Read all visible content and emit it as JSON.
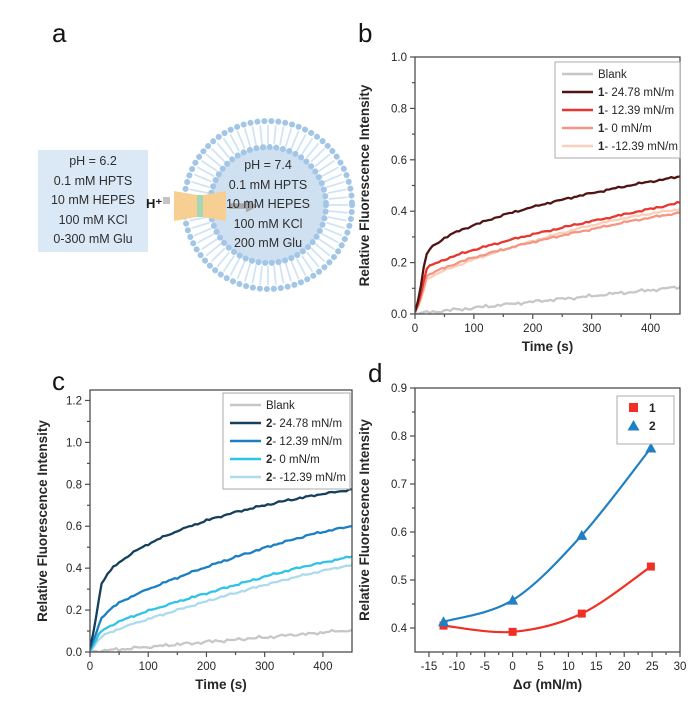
{
  "panel_labels": {
    "a": "a",
    "b": "b",
    "c": "c",
    "d": "d"
  },
  "panel_a": {
    "external_solution_lines": [
      "pH = 6.2",
      "0.1 mM HPTS",
      "10 mM HEPES",
      "100 mM KCl",
      "0-300 mM Glu"
    ],
    "internal_solution_lines": [
      "pH = 7.4",
      "0.1 mM HPTS",
      "10 mM HEPES",
      "100 mM KCl",
      "200 mM Glu"
    ],
    "proton_label": "H⁺",
    "colors": {
      "box_bg": "#dbe9f6",
      "vesicle_inner": "#cfe0f1",
      "beads": "#a3c6e6",
      "tails": "#cfe3f4",
      "channel": "#f8cf92",
      "channel_stripe": "#a5d7b4",
      "arrow": "#a8a8a8",
      "proton_square": "#c4c4c4"
    }
  },
  "chart_data": [
    {
      "panel": "b",
      "type": "line",
      "xlabel": "Time (s)",
      "ylabel": "Relative Fluorescence Intensity",
      "xlim": [
        0,
        450
      ],
      "ylim": [
        0,
        1.0
      ],
      "xticks": [
        0,
        100,
        200,
        300,
        400
      ],
      "xtick_labels": [
        "0",
        "100",
        "200",
        "300",
        "400"
      ],
      "yticks": [
        0,
        0.2,
        0.4,
        0.6,
        0.8,
        1.0
      ],
      "ytick_labels": [
        "0.0",
        "0.2",
        "0.4",
        "0.6",
        "0.8",
        "1.0"
      ],
      "x_minor_step": 50,
      "y_minor_step": 0.1,
      "grid": false,
      "legend_position": "top-right",
      "legend": [
        {
          "bold": "",
          "label": "Blank",
          "color": "#c7c7c7"
        },
        {
          "bold": "1",
          "label": "- 24.78 mN/m",
          "color": "#511414"
        },
        {
          "bold": "1",
          "label": "- 12.39 mN/m",
          "color": "#e8372e"
        },
        {
          "bold": "1",
          "label": "- 0 mN/m",
          "color": "#f59682"
        },
        {
          "bold": "1",
          "label": "- -12.39 mN/m",
          "color": "#f9cfba"
        }
      ],
      "x": [
        0,
        5,
        10,
        15,
        20,
        30,
        40,
        50,
        75,
        100,
        125,
        150,
        175,
        200,
        225,
        250,
        275,
        300,
        325,
        350,
        375,
        400,
        425,
        450
      ],
      "series": [
        {
          "name": "Blank",
          "color": "#c7c7c7",
          "noise": 1.3,
          "values": [
            0.002,
            0.003,
            0.004,
            0.005,
            0.006,
            0.008,
            0.01,
            0.013,
            0.018,
            0.024,
            0.03,
            0.036,
            0.042,
            0.048,
            0.053,
            0.059,
            0.064,
            0.07,
            0.076,
            0.082,
            0.087,
            0.093,
            0.099,
            0.105
          ]
        },
        {
          "name": "1- -12.39 mN/m",
          "color": "#f9cfba",
          "noise": 0.8,
          "values": [
            0.005,
            0.025,
            0.055,
            0.095,
            0.135,
            0.149,
            0.159,
            0.169,
            0.191,
            0.213,
            0.231,
            0.249,
            0.267,
            0.284,
            0.3,
            0.316,
            0.331,
            0.345,
            0.358,
            0.37,
            0.381,
            0.391,
            0.4,
            0.408
          ]
        },
        {
          "name": "1- 0 mN/m",
          "color": "#f59682",
          "noise": 0.8,
          "values": [
            0.008,
            0.03,
            0.065,
            0.11,
            0.148,
            0.16,
            0.17,
            0.18,
            0.201,
            0.22,
            0.236,
            0.251,
            0.266,
            0.28,
            0.293,
            0.306,
            0.318,
            0.33,
            0.342,
            0.354,
            0.365,
            0.375,
            0.385,
            0.394
          ]
        },
        {
          "name": "1- 12.39 mN/m",
          "color": "#e8372e",
          "noise": 0.8,
          "values": [
            0.01,
            0.04,
            0.08,
            0.13,
            0.178,
            0.192,
            0.202,
            0.212,
            0.232,
            0.25,
            0.266,
            0.281,
            0.296,
            0.31,
            0.323,
            0.336,
            0.349,
            0.361,
            0.373,
            0.385,
            0.397,
            0.409,
            0.421,
            0.433
          ]
        },
        {
          "name": "1- 24.78 mN/m",
          "color": "#511414",
          "noise": 0.8,
          "values": [
            0.01,
            0.05,
            0.11,
            0.18,
            0.235,
            0.265,
            0.28,
            0.295,
            0.325,
            0.345,
            0.366,
            0.385,
            0.401,
            0.416,
            0.431,
            0.445,
            0.458,
            0.47,
            0.482,
            0.494,
            0.505,
            0.515,
            0.525,
            0.535
          ]
        }
      ]
    },
    {
      "panel": "c",
      "type": "line",
      "xlabel": "Time (s)",
      "ylabel": "Relative Fluorescence Intensity",
      "xlim": [
        0,
        450
      ],
      "ylim": [
        0,
        1.25
      ],
      "xticks": [
        0,
        100,
        200,
        300,
        400
      ],
      "xtick_labels": [
        "0",
        "100",
        "200",
        "300",
        "400"
      ],
      "yticks": [
        0,
        0.2,
        0.4,
        0.6,
        0.8,
        1.0,
        1.2
      ],
      "ytick_labels": [
        "0.0",
        "0.2",
        "0.4",
        "0.6",
        "0.8",
        "1.0",
        "1.2"
      ],
      "x_minor_step": 50,
      "y_minor_step": 0.1,
      "grid": false,
      "legend_position": "top-right",
      "legend": [
        {
          "bold": "",
          "label": "Blank",
          "color": "#c7c7c7"
        },
        {
          "bold": "2",
          "label": "- 24.78 mN/m",
          "color": "#15405d"
        },
        {
          "bold": "2",
          "label": "- 12.39 mN/m",
          "color": "#1b7fc4"
        },
        {
          "bold": "2",
          "label": "- 0 mN/m",
          "color": "#2fc3e6"
        },
        {
          "bold": "2",
          "label": "- -12.39 mN/m",
          "color": "#abdbec"
        }
      ],
      "x": [
        0,
        5,
        10,
        15,
        20,
        30,
        40,
        50,
        75,
        100,
        125,
        150,
        175,
        200,
        225,
        250,
        275,
        300,
        325,
        350,
        375,
        400,
        425,
        450
      ],
      "series": [
        {
          "name": "Blank",
          "color": "#c7c7c7",
          "noise": 1.3,
          "values": [
            0.002,
            0.003,
            0.004,
            0.005,
            0.006,
            0.008,
            0.01,
            0.013,
            0.018,
            0.024,
            0.03,
            0.036,
            0.042,
            0.048,
            0.053,
            0.059,
            0.064,
            0.07,
            0.076,
            0.082,
            0.087,
            0.093,
            0.099,
            0.105
          ]
        },
        {
          "name": "2- -12.39 mN/m",
          "color": "#abdbec",
          "noise": 0.8,
          "values": [
            0.005,
            0.02,
            0.04,
            0.058,
            0.073,
            0.088,
            0.1,
            0.111,
            0.135,
            0.157,
            0.179,
            0.2,
            0.221,
            0.242,
            0.262,
            0.282,
            0.301,
            0.32,
            0.338,
            0.355,
            0.372,
            0.388,
            0.402,
            0.415
          ]
        },
        {
          "name": "2- 0 mN/m",
          "color": "#2fc3e6",
          "noise": 0.8,
          "values": [
            0.008,
            0.03,
            0.055,
            0.08,
            0.1,
            0.118,
            0.132,
            0.145,
            0.172,
            0.196,
            0.218,
            0.24,
            0.26,
            0.28,
            0.3,
            0.32,
            0.34,
            0.359,
            0.378,
            0.396,
            0.412,
            0.427,
            0.441,
            0.455
          ]
        },
        {
          "name": "2- 12.39 mN/m",
          "color": "#1b7fc4",
          "noise": 0.8,
          "values": [
            0.01,
            0.045,
            0.085,
            0.125,
            0.163,
            0.193,
            0.215,
            0.234,
            0.27,
            0.3,
            0.328,
            0.355,
            0.381,
            0.406,
            0.43,
            0.453,
            0.475,
            0.497,
            0.518,
            0.538,
            0.557,
            0.573,
            0.588,
            0.6
          ]
        },
        {
          "name": "2- 24.78 mN/m",
          "color": "#15405d",
          "noise": 0.8,
          "values": [
            0.02,
            0.08,
            0.16,
            0.25,
            0.325,
            0.372,
            0.403,
            0.428,
            0.477,
            0.515,
            0.548,
            0.577,
            0.603,
            0.627,
            0.648,
            0.667,
            0.684,
            0.7,
            0.715,
            0.729,
            0.742,
            0.754,
            0.765,
            0.776
          ]
        }
      ]
    },
    {
      "panel": "d",
      "type": "scatter",
      "xlabel": "Δσ (mN/m)",
      "ylabel": "Relative Fluorescence Intensity",
      "xlim": [
        -17.5,
        30
      ],
      "ylim": [
        0.35,
        0.9
      ],
      "xticks": [
        -15,
        -10,
        -5,
        0,
        5,
        10,
        15,
        20,
        25,
        30
      ],
      "xtick_labels": [
        "-15",
        "-10",
        "-5",
        "0",
        "5",
        "10",
        "15",
        "20",
        "25",
        "30"
      ],
      "yticks": [
        0.4,
        0.5,
        0.6,
        0.7,
        0.8,
        0.9
      ],
      "ytick_labels": [
        "0.4",
        "0.5",
        "0.6",
        "0.7",
        "0.8",
        "0.9"
      ],
      "x_minor_step": 2.5,
      "y_minor_step": 0.05,
      "grid": false,
      "legend_position": "top-right",
      "legend": [
        {
          "bold": "1",
          "label": "",
          "marker": "square",
          "color": "#ee3124"
        },
        {
          "bold": "2",
          "label": "",
          "marker": "triangle",
          "color": "#1f80c4"
        }
      ],
      "series": [
        {
          "name": "1",
          "marker": "square",
          "color": "#ee3124",
          "fit_line": true,
          "x": [
            -12.39,
            0,
            12.39,
            24.78
          ],
          "y": [
            0.405,
            0.392,
            0.43,
            0.528
          ]
        },
        {
          "name": "2",
          "marker": "triangle",
          "color": "#1f80c4",
          "fit_line": true,
          "x": [
            -12.39,
            0,
            12.39,
            24.78
          ],
          "y": [
            0.413,
            0.458,
            0.593,
            0.775
          ]
        }
      ]
    }
  ]
}
